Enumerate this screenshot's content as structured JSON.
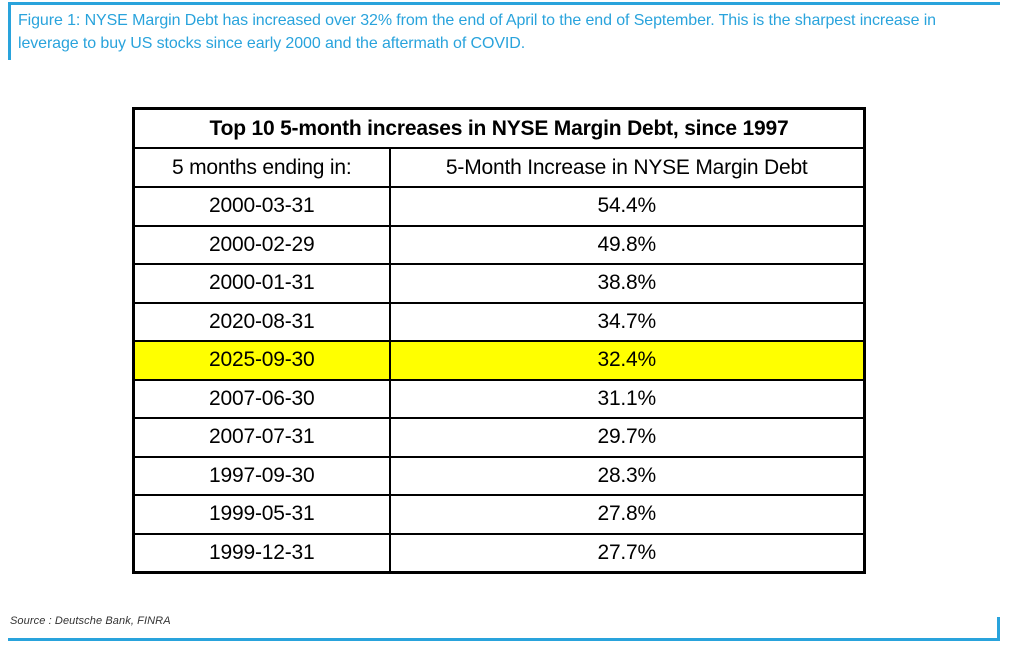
{
  "caption": {
    "text": "Figure 1: NYSE Margin Debt has increased over 32% from the end of April to the end of September. This is the sharpest increase in leverage to buy US stocks since early 2000 and the aftermath of COVID."
  },
  "table": {
    "title": "Top 10 5-month increases in NYSE Margin Debt, since 1997",
    "columns": [
      "5 months ending in:",
      "5-Month Increase in NYSE Margin Debt"
    ],
    "rows": [
      {
        "ending": "2000-03-31",
        "increase": "54.4%"
      },
      {
        "ending": "2000-02-29",
        "increase": "49.8%"
      },
      {
        "ending": "2000-01-31",
        "increase": "38.8%"
      },
      {
        "ending": "2020-08-31",
        "increase": "34.7%"
      },
      {
        "ending": "2025-09-30",
        "increase": "32.4%"
      },
      {
        "ending": "2007-06-30",
        "increase": "31.1%"
      },
      {
        "ending": "2007-07-31",
        "increase": "29.7%"
      },
      {
        "ending": "1997-09-30",
        "increase": "28.3%"
      },
      {
        "ending": "1999-05-31",
        "increase": "27.8%"
      },
      {
        "ending": "1999-12-31",
        "increase": "27.7%"
      }
    ],
    "highlighted_row_index": 4,
    "highlight_color": "#ffff00"
  },
  "source": {
    "text": "Source : Deutsche Bank, FINRA"
  },
  "colors": {
    "accent_blue": "#29a3dc",
    "table_border": "#000000",
    "highlight_yellow": "#ffff00",
    "caption_text": "#29a3dc"
  }
}
